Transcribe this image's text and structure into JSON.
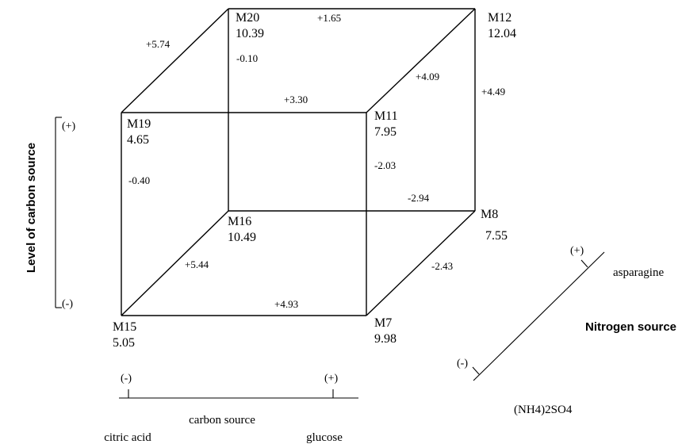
{
  "nodes": {
    "M20": {
      "label": "M20",
      "value": "10.39"
    },
    "M12": {
      "label": "M12",
      "value": "12.04"
    },
    "M19": {
      "label": "M19",
      "value": "4.65"
    },
    "M11": {
      "label": "M11",
      "value": "7.95"
    },
    "M16": {
      "label": "M16",
      "value": "10.49"
    },
    "M8": {
      "label": "M8",
      "value": "7.55"
    },
    "M15": {
      "label": "M15",
      "value": "5.05"
    },
    "M7": {
      "label": "M7",
      "value": "9.98"
    }
  },
  "effects": {
    "m19_m20": "+5.74",
    "m20_m12": "+1.65",
    "m20_m16": "-0.10",
    "m11_m12": "+4.09",
    "m12_m8": "+4.49",
    "m19_m11": "+3.30",
    "m19_m15": "-0.40",
    "m11_m7": "-2.03",
    "m16_m8": "-2.94",
    "m15_m16": "+5.44",
    "m7_m8": "-2.43",
    "m15_m7": "+4.93"
  },
  "axes": {
    "carbon_level": {
      "title": "Level of carbon source",
      "high": "(+)",
      "low": "(-)"
    },
    "carbon_source": {
      "title": "carbon source",
      "low": "(-)",
      "high": "(+)",
      "low_name": "citric acid",
      "high_name": "glucose"
    },
    "nitrogen_source": {
      "title": "Nitrogen source",
      "high": "(+)",
      "low": "(-)",
      "high_name": "asparagine",
      "low_name": "(NH4)2SO4"
    }
  }
}
